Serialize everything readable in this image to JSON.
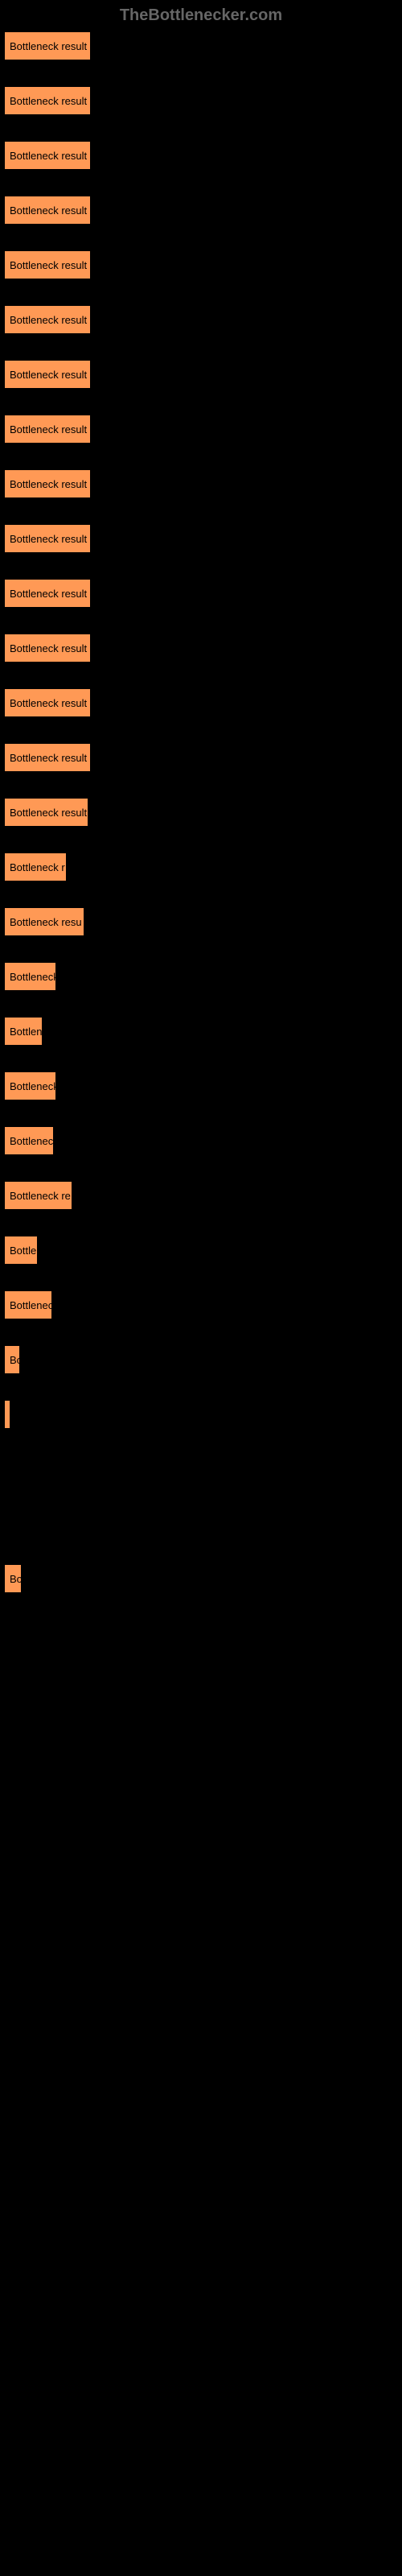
{
  "header": {
    "title": "TheBottlenecker.com"
  },
  "chart": {
    "type": "bar",
    "bar_color": "#ff9955",
    "background_color": "#000000",
    "text_color": "#000000",
    "header_color": "#666666",
    "max_width": 490,
    "bars": [
      {
        "label": "Bottleneck result",
        "width": 108
      },
      {
        "label": "Bottleneck result",
        "width": 108
      },
      {
        "label": "Bottleneck result",
        "width": 108
      },
      {
        "label": "Bottleneck result",
        "width": 108
      },
      {
        "label": "Bottleneck result",
        "width": 108
      },
      {
        "label": "Bottleneck result",
        "width": 108
      },
      {
        "label": "Bottleneck result",
        "width": 108
      },
      {
        "label": "Bottleneck result",
        "width": 108
      },
      {
        "label": "Bottleneck result",
        "width": 108
      },
      {
        "label": "Bottleneck result",
        "width": 108
      },
      {
        "label": "Bottleneck result",
        "width": 108
      },
      {
        "label": "Bottleneck result",
        "width": 108
      },
      {
        "label": "Bottleneck result",
        "width": 108
      },
      {
        "label": "Bottleneck result",
        "width": 108
      },
      {
        "label": "Bottleneck result",
        "width": 105
      },
      {
        "label": "Bottleneck r",
        "width": 78
      },
      {
        "label": "Bottleneck resu",
        "width": 100
      },
      {
        "label": "Bottleneck",
        "width": 65
      },
      {
        "label": "Bottlen",
        "width": 48
      },
      {
        "label": "Bottleneck",
        "width": 65
      },
      {
        "label": "Bottleneck",
        "width": 62
      },
      {
        "label": "Bottleneck re",
        "width": 85
      },
      {
        "label": "Bottle",
        "width": 42
      },
      {
        "label": "Bottlenec",
        "width": 60
      },
      {
        "label": "Bo",
        "width": 20
      },
      {
        "label": "",
        "width": 8
      },
      {
        "label": "",
        "width": 0
      },
      {
        "label": "",
        "width": 0
      },
      {
        "label": "Bo",
        "width": 22
      },
      {
        "label": "",
        "width": 0
      },
      {
        "label": "",
        "width": 0
      },
      {
        "label": "",
        "width": 0
      },
      {
        "label": "",
        "width": 0
      },
      {
        "label": "",
        "width": 0
      },
      {
        "label": "",
        "width": 0
      },
      {
        "label": "",
        "width": 0
      },
      {
        "label": "",
        "width": 0
      },
      {
        "label": "",
        "width": 0
      },
      {
        "label": "",
        "width": 0
      },
      {
        "label": "",
        "width": 0
      },
      {
        "label": "",
        "width": 0
      },
      {
        "label": "",
        "width": 0
      },
      {
        "label": "",
        "width": 0
      },
      {
        "label": "",
        "width": 0
      },
      {
        "label": "",
        "width": 0
      },
      {
        "label": "",
        "width": 0
      }
    ]
  }
}
